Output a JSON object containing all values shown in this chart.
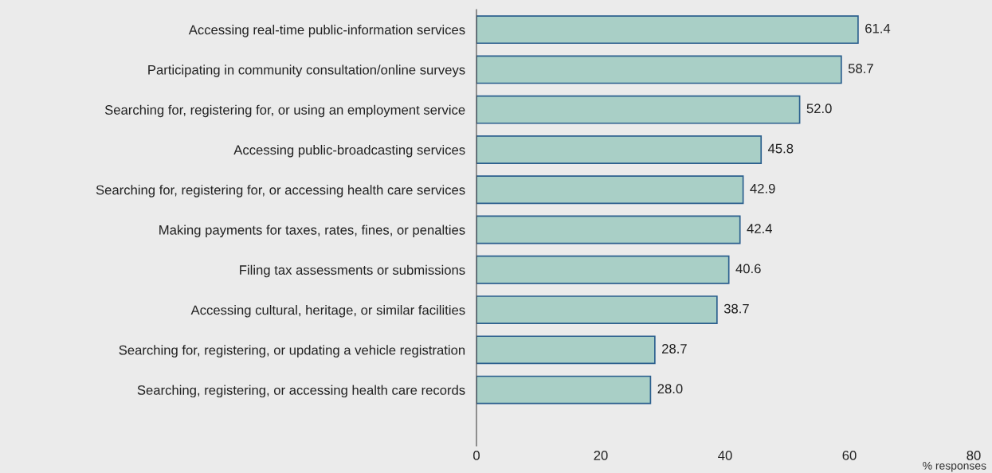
{
  "chart_data": {
    "type": "bar",
    "orientation": "horizontal",
    "xlabel": "% responses",
    "categories": [
      "Accessing real-time public-information services",
      "Participating in community consultation/online surveys",
      "Searching for, registering for, or using an employment service",
      "Accessing public-broadcasting services",
      "Searching for, registering for, or accessing health care services",
      "Making payments for taxes, rates, fines, or penalties",
      "Filing tax assessments or submissions",
      "Accessing cultural, heritage, or similar facilities",
      "Searching for, registering, or updating a vehicle registration",
      "Searching, registering, or accessing health care records"
    ],
    "series": [
      {
        "color": "#a9cfc6",
        "values": [
          61.4,
          58.7,
          52.0,
          45.8,
          42.9,
          42.4,
          40.6,
          38.7,
          28.7,
          28.0
        ],
        "value_labels": [
          "61.4",
          "58.7",
          "52.0",
          "45.8",
          "42.9",
          "42.4",
          "40.6",
          "38.7",
          "28.7",
          "28.0"
        ]
      }
    ],
    "xlim": [
      0,
      80
    ],
    "xticks": [
      0,
      20,
      40,
      60,
      80
    ],
    "grid": false,
    "legend": false
  }
}
